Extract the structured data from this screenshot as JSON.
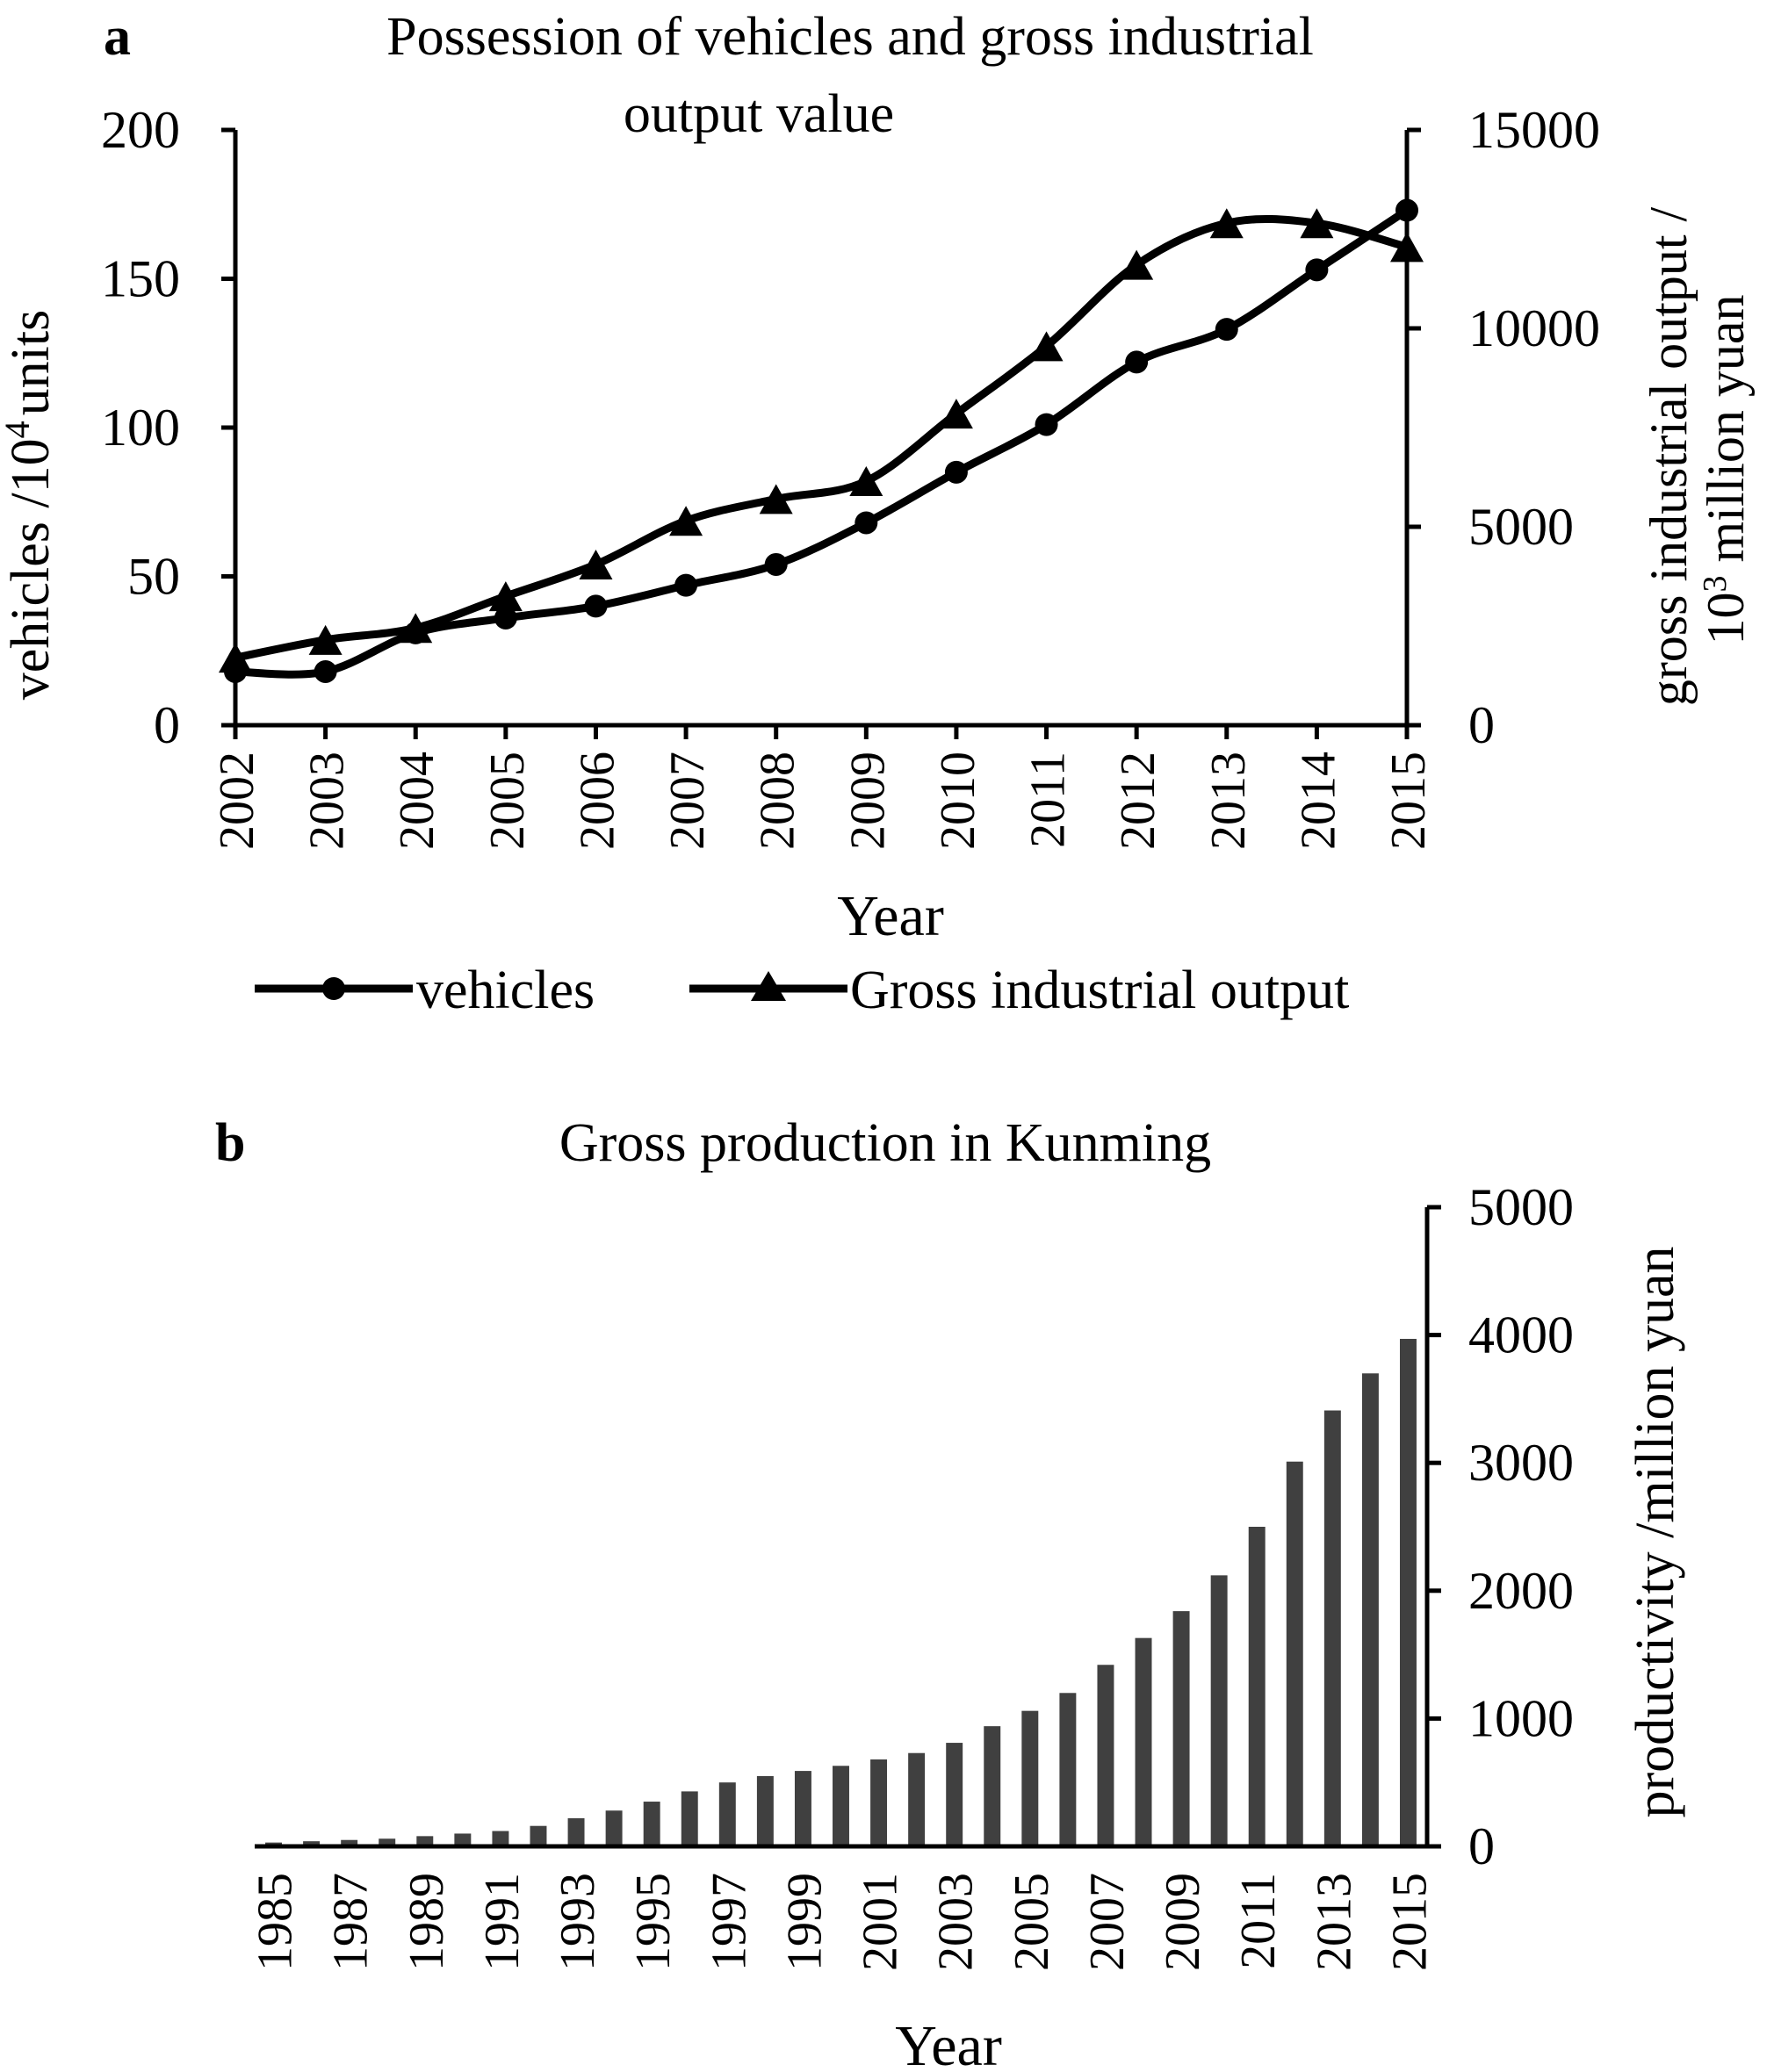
{
  "chart_data": [
    {
      "panel_label": "a",
      "type": "line",
      "title": [
        "Possession of vehicles and gross industrial",
        "output value"
      ],
      "xlabel": "Year",
      "categories": [
        "2002",
        "2003",
        "2004",
        "2005",
        "2006",
        "2007",
        "2008",
        "2009",
        "2010",
        "2011",
        "2012",
        "2013",
        "2014",
        "2015"
      ],
      "ylabel_left": {
        "main": "vehicles /10",
        "sup": "4",
        "rest": "units"
      },
      "ylim_left": [
        0,
        200
      ],
      "yticks_left": [
        0,
        50,
        100,
        150,
        200
      ],
      "ylabel_right": {
        "line1": "gross industrial output /",
        "line2_prefix": "10",
        "line2_sup": "3",
        "line2_rest": " million yuan"
      },
      "ylim_right": [
        0,
        15000
      ],
      "yticks_right": [
        0,
        5000,
        10000,
        15000
      ],
      "series": [
        {
          "name": "vehicles",
          "axis": "left",
          "marker": "circle",
          "values": [
            18,
            18,
            31,
            36,
            40,
            47,
            54,
            68,
            85,
            101,
            122,
            133,
            153,
            173
          ]
        },
        {
          "name": "Gross industrial output",
          "axis": "right",
          "marker": "triangle",
          "values": [
            1700,
            2150,
            2450,
            3250,
            4050,
            5150,
            5700,
            6150,
            7850,
            9550,
            11600,
            12650,
            12650,
            12050
          ]
        }
      ],
      "legend": [
        "vehicles",
        "Gross industrial output"
      ],
      "legend_position": "bottom"
    },
    {
      "panel_label": "b",
      "type": "bar",
      "title": "Gross production in Kunming",
      "xlabel": "Year",
      "ylabel": "productivity /million yuan",
      "ylim": [
        0,
        5000
      ],
      "yticks": [
        0,
        1000,
        2000,
        3000,
        4000,
        5000
      ],
      "tick_labels": [
        "1985",
        "1987",
        "1989",
        "1991",
        "1993",
        "1995",
        "1997",
        "1999",
        "2001",
        "2003",
        "2005",
        "2007",
        "2009",
        "2011",
        "2013",
        "2015"
      ],
      "categories": [
        "1985",
        "1986",
        "1987",
        "1988",
        "1989",
        "1990",
        "1991",
        "1992",
        "1993",
        "1994",
        "1995",
        "1996",
        "1997",
        "1998",
        "1999",
        "2000",
        "2001",
        "2002",
        "2003",
        "2004",
        "2005",
        "2006",
        "2007",
        "2008",
        "2009",
        "2010",
        "2011",
        "2012",
        "2013",
        "2014",
        "2015"
      ],
      "values": [
        30,
        40,
        50,
        60,
        80,
        100,
        120,
        160,
        220,
        280,
        350,
        430,
        500,
        550,
        590,
        630,
        680,
        730,
        810,
        940,
        1060,
        1200,
        1420,
        1630,
        1840,
        2120,
        2500,
        3010,
        3410,
        3700,
        3970
      ],
      "color": "#404040"
    }
  ]
}
